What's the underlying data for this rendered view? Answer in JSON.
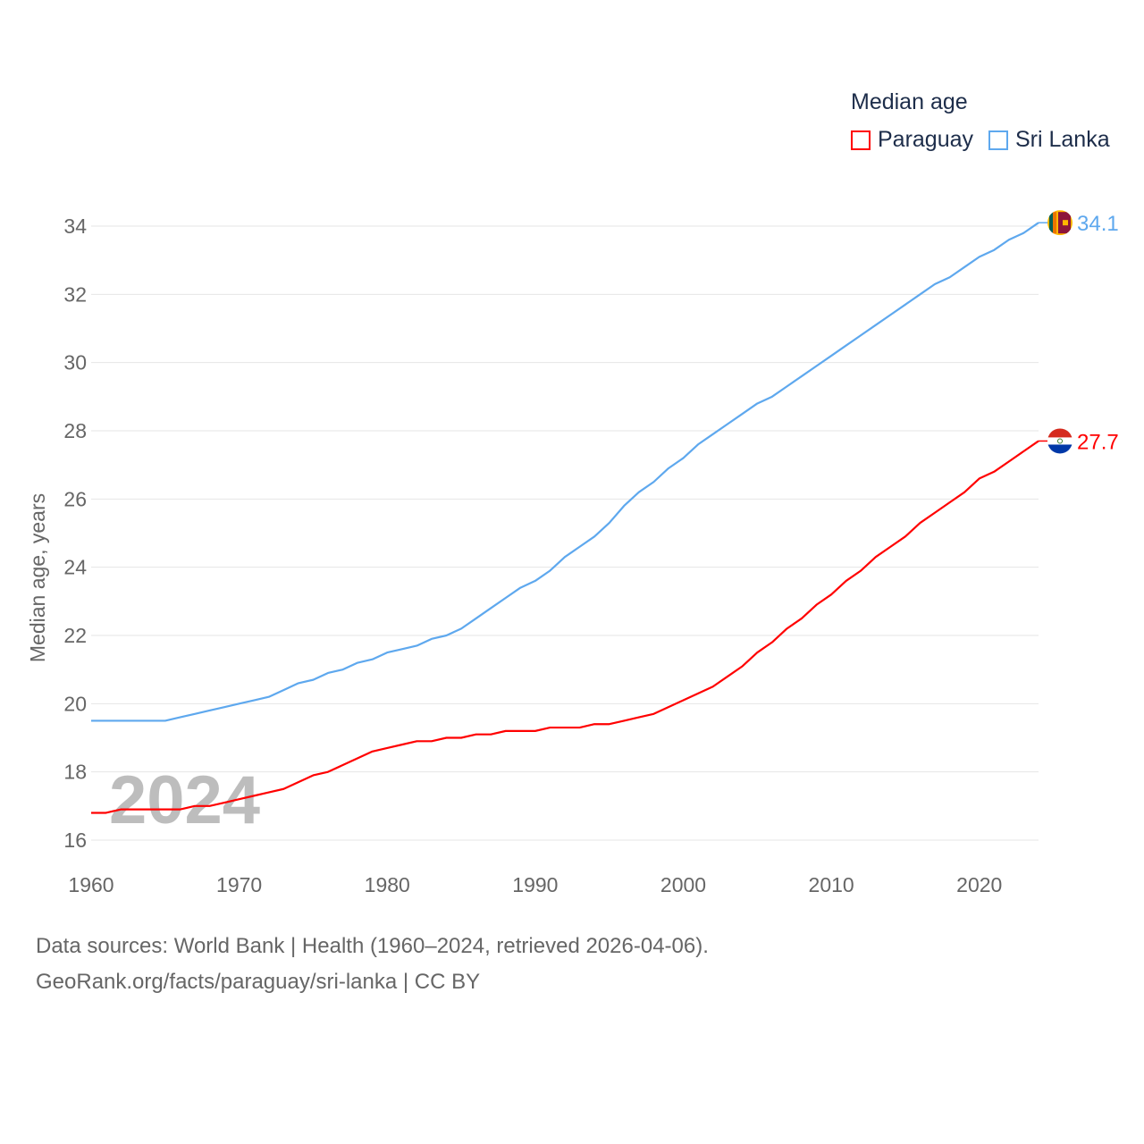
{
  "chart_data": {
    "type": "line",
    "legend_title": "Median age",
    "ylabel": "Median age, years",
    "xlabel": "",
    "ylim": [
      16,
      34
    ],
    "xlim": [
      1960,
      2024
    ],
    "yticks": [
      16,
      18,
      20,
      22,
      24,
      26,
      28,
      30,
      32,
      34
    ],
    "xticks": [
      1960,
      1970,
      1980,
      1990,
      2000,
      2010,
      2020
    ],
    "grid": true,
    "legend_position": "top-right",
    "year_label": "2024",
    "x": [
      1960,
      1961,
      1962,
      1963,
      1964,
      1965,
      1966,
      1967,
      1968,
      1969,
      1970,
      1971,
      1972,
      1973,
      1974,
      1975,
      1976,
      1977,
      1978,
      1979,
      1980,
      1981,
      1982,
      1983,
      1984,
      1985,
      1986,
      1987,
      1988,
      1989,
      1990,
      1991,
      1992,
      1993,
      1994,
      1995,
      1996,
      1997,
      1998,
      1999,
      2000,
      2001,
      2002,
      2003,
      2004,
      2005,
      2006,
      2007,
      2008,
      2009,
      2010,
      2011,
      2012,
      2013,
      2014,
      2015,
      2016,
      2017,
      2018,
      2019,
      2020,
      2021,
      2022,
      2023,
      2024
    ],
    "series": [
      {
        "name": "Paraguay",
        "color": "#ff0000",
        "end_label": "27.7",
        "values": [
          16.8,
          16.8,
          16.9,
          16.9,
          16.9,
          16.9,
          16.9,
          17.0,
          17.0,
          17.1,
          17.2,
          17.3,
          17.4,
          17.5,
          17.7,
          17.9,
          18.0,
          18.2,
          18.4,
          18.6,
          18.7,
          18.8,
          18.9,
          18.9,
          19.0,
          19.0,
          19.1,
          19.1,
          19.2,
          19.2,
          19.2,
          19.3,
          19.3,
          19.3,
          19.4,
          19.4,
          19.5,
          19.6,
          19.7,
          19.9,
          20.1,
          20.3,
          20.5,
          20.8,
          21.1,
          21.5,
          21.8,
          22.2,
          22.5,
          22.9,
          23.2,
          23.6,
          23.9,
          24.3,
          24.6,
          24.9,
          25.3,
          25.6,
          25.9,
          26.2,
          26.6,
          26.8,
          27.1,
          27.4,
          27.7
        ]
      },
      {
        "name": "Sri Lanka",
        "color": "#5ea8ee",
        "end_label": "34.1",
        "values": [
          19.5,
          19.5,
          19.5,
          19.5,
          19.5,
          19.5,
          19.6,
          19.7,
          19.8,
          19.9,
          20.0,
          20.1,
          20.2,
          20.4,
          20.6,
          20.7,
          20.9,
          21.0,
          21.2,
          21.3,
          21.5,
          21.6,
          21.7,
          21.9,
          22.0,
          22.2,
          22.5,
          22.8,
          23.1,
          23.4,
          23.6,
          23.9,
          24.3,
          24.6,
          24.9,
          25.3,
          25.8,
          26.2,
          26.5,
          26.9,
          27.2,
          27.6,
          27.9,
          28.2,
          28.5,
          28.8,
          29.0,
          29.3,
          29.6,
          29.9,
          30.2,
          30.5,
          30.8,
          31.1,
          31.4,
          31.7,
          32.0,
          32.3,
          32.5,
          32.8,
          33.1,
          33.3,
          33.6,
          33.8,
          34.1
        ]
      }
    ]
  },
  "footer": {
    "line1": "Data sources: World Bank | Health (1960–2024, retrieved 2026-04-06).",
    "line2": "GeoRank.org/facts/paraguay/sri-lanka | CC BY"
  }
}
